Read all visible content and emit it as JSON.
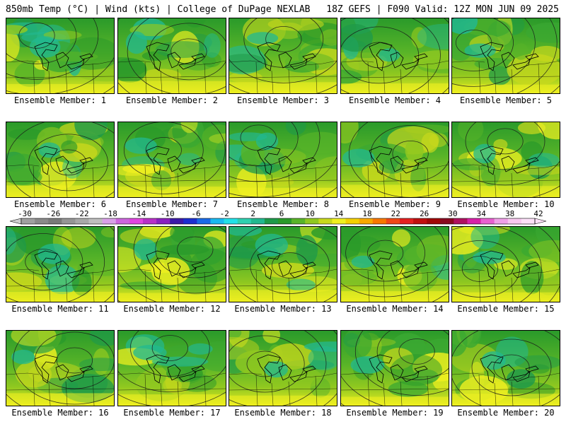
{
  "header": {
    "left": "850mb Temp (°C) | Wind (kts) | College of DuPage NEXLAB",
    "right": "18Z GEFS | F090 Valid: 12Z MON JUN 09 2025"
  },
  "member_label_prefix": "Ensemble Member:",
  "members": [
    1,
    2,
    3,
    4,
    5,
    6,
    7,
    8,
    9,
    10,
    11,
    12,
    13,
    14,
    15,
    16,
    17,
    18,
    19,
    20
  ],
  "colorbar": {
    "ticks": [
      "-30",
      "-26",
      "-22",
      "-18",
      "-14",
      "-10",
      "-6",
      "-2",
      "2",
      "6",
      "10",
      "14",
      "18",
      "22",
      "26",
      "30",
      "34",
      "38",
      "42"
    ],
    "colors": [
      "#a0a0a0",
      "#8a8a8a",
      "#7a7a7a",
      "#959595",
      "#a8a8a8",
      "#bebebe",
      "#d9a0e8",
      "#cc66dd",
      "#e045e0",
      "#b830c8",
      "#8a20c0",
      "#3c1aa8",
      "#1c2ed0",
      "#1a6ae8",
      "#1ab8f0",
      "#22e0e8",
      "#2ed0b0",
      "#22b890",
      "#1e9a4a",
      "#2a9a2a",
      "#58b428",
      "#90c820",
      "#c8d81c",
      "#f0f020",
      "#f4d000",
      "#f8a800",
      "#f87800",
      "#f04818",
      "#e42020",
      "#c01010",
      "#a00808",
      "#8a0a20",
      "#b01060",
      "#d820a8",
      "#e860d0",
      "#f0a0e8",
      "#f8c8f0",
      "#fce0f8"
    ]
  }
}
